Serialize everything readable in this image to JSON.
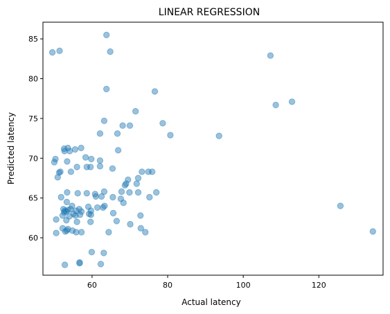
{
  "chart_data": {
    "type": "scatter",
    "title": "LINEAR REGRESSION",
    "xlabel": "Actual latency",
    "ylabel": "Predicted latency",
    "xlim": [
      47,
      137
    ],
    "ylim": [
      55.3,
      87.1
    ],
    "xticks": [
      60,
      80,
      100,
      120
    ],
    "yticks": [
      60,
      65,
      70,
      75,
      80,
      85
    ],
    "grid": false,
    "marker_color": "#1f77b4",
    "marker_alpha": 0.45,
    "points": [
      {
        "x": 49.5,
        "y": 83.3
      },
      {
        "x": 51.4,
        "y": 83.5
      },
      {
        "x": 63.8,
        "y": 85.5
      },
      {
        "x": 64.8,
        "y": 83.4
      },
      {
        "x": 107.2,
        "y": 82.9
      },
      {
        "x": 63.8,
        "y": 78.7
      },
      {
        "x": 76.6,
        "y": 78.4
      },
      {
        "x": 108.6,
        "y": 76.7
      },
      {
        "x": 112.9,
        "y": 77.1
      },
      {
        "x": 71.5,
        "y": 75.9
      },
      {
        "x": 63.2,
        "y": 74.7
      },
      {
        "x": 78.7,
        "y": 74.4
      },
      {
        "x": 68.1,
        "y": 74.1
      },
      {
        "x": 70.0,
        "y": 74.1
      },
      {
        "x": 62.1,
        "y": 73.1
      },
      {
        "x": 66.7,
        "y": 73.1
      },
      {
        "x": 80.7,
        "y": 72.9
      },
      {
        "x": 93.6,
        "y": 72.8
      },
      {
        "x": 57.1,
        "y": 71.3
      },
      {
        "x": 52.6,
        "y": 71.2
      },
      {
        "x": 53.6,
        "y": 71.3
      },
      {
        "x": 54.1,
        "y": 70.9
      },
      {
        "x": 55.5,
        "y": 71.1
      },
      {
        "x": 66.9,
        "y": 71.0
      },
      {
        "x": 52.7,
        "y": 70.9
      },
      {
        "x": 58.3,
        "y": 70.1
      },
      {
        "x": 50.3,
        "y": 69.9
      },
      {
        "x": 59.8,
        "y": 69.9
      },
      {
        "x": 50.0,
        "y": 69.5
      },
      {
        "x": 53.4,
        "y": 69.6
      },
      {
        "x": 62.1,
        "y": 69.7
      },
      {
        "x": 56.0,
        "y": 68.9
      },
      {
        "x": 58.6,
        "y": 68.9
      },
      {
        "x": 59.6,
        "y": 68.9
      },
      {
        "x": 62.1,
        "y": 69.0
      },
      {
        "x": 65.4,
        "y": 68.7
      },
      {
        "x": 51.6,
        "y": 68.3
      },
      {
        "x": 51.3,
        "y": 68.2
      },
      {
        "x": 54.4,
        "y": 68.3
      },
      {
        "x": 73.2,
        "y": 68.3
      },
      {
        "x": 74.9,
        "y": 68.3
      },
      {
        "x": 75.9,
        "y": 68.3
      },
      {
        "x": 50.9,
        "y": 67.6
      },
      {
        "x": 69.5,
        "y": 67.3
      },
      {
        "x": 72.2,
        "y": 67.5
      },
      {
        "x": 69.0,
        "y": 66.8
      },
      {
        "x": 68.7,
        "y": 66.6
      },
      {
        "x": 71.8,
        "y": 66.8
      },
      {
        "x": 53.4,
        "y": 65.7
      },
      {
        "x": 56.2,
        "y": 65.6
      },
      {
        "x": 58.6,
        "y": 65.6
      },
      {
        "x": 60.8,
        "y": 65.5
      },
      {
        "x": 63.2,
        "y": 65.8
      },
      {
        "x": 67.8,
        "y": 65.8
      },
      {
        "x": 69.9,
        "y": 65.7
      },
      {
        "x": 72.2,
        "y": 65.7
      },
      {
        "x": 77.0,
        "y": 65.7
      },
      {
        "x": 51.8,
        "y": 65.1
      },
      {
        "x": 61.0,
        "y": 65.2
      },
      {
        "x": 62.5,
        "y": 65.2
      },
      {
        "x": 65.5,
        "y": 65.1
      },
      {
        "x": 67.6,
        "y": 64.9
      },
      {
        "x": 68.3,
        "y": 64.4
      },
      {
        "x": 75.2,
        "y": 65.1
      },
      {
        "x": 53.3,
        "y": 64.5
      },
      {
        "x": 54.7,
        "y": 64.0
      },
      {
        "x": 59.0,
        "y": 63.9
      },
      {
        "x": 61.4,
        "y": 63.8
      },
      {
        "x": 62.9,
        "y": 63.8
      },
      {
        "x": 63.3,
        "y": 64.0
      },
      {
        "x": 52.4,
        "y": 63.6
      },
      {
        "x": 52.8,
        "y": 63.4
      },
      {
        "x": 53.6,
        "y": 63.5
      },
      {
        "x": 54.3,
        "y": 63.6
      },
      {
        "x": 55.8,
        "y": 63.4
      },
      {
        "x": 56.6,
        "y": 63.6
      },
      {
        "x": 57.2,
        "y": 63.3
      },
      {
        "x": 59.7,
        "y": 63.4
      },
      {
        "x": 52.6,
        "y": 63.2
      },
      {
        "x": 53.2,
        "y": 63.3
      },
      {
        "x": 55.1,
        "y": 63.0
      },
      {
        "x": 56.8,
        "y": 62.9
      },
      {
        "x": 59.2,
        "y": 63.0
      },
      {
        "x": 59.7,
        "y": 62.9
      },
      {
        "x": 65.6,
        "y": 63.1
      },
      {
        "x": 72.8,
        "y": 62.8
      },
      {
        "x": 52.2,
        "y": 62.8
      },
      {
        "x": 54.0,
        "y": 62.7
      },
      {
        "x": 55.6,
        "y": 62.8
      },
      {
        "x": 50.5,
        "y": 62.3
      },
      {
        "x": 53.2,
        "y": 62.2
      },
      {
        "x": 56.0,
        "y": 62.0
      },
      {
        "x": 59.6,
        "y": 62.0
      },
      {
        "x": 66.5,
        "y": 62.1
      },
      {
        "x": 70.1,
        "y": 61.7
      },
      {
        "x": 52.2,
        "y": 61.2
      },
      {
        "x": 53.6,
        "y": 61.1
      },
      {
        "x": 53.3,
        "y": 60.9
      },
      {
        "x": 50.5,
        "y": 60.6
      },
      {
        "x": 52.9,
        "y": 60.8
      },
      {
        "x": 54.8,
        "y": 60.9
      },
      {
        "x": 55.8,
        "y": 60.7
      },
      {
        "x": 57.2,
        "y": 60.7
      },
      {
        "x": 64.4,
        "y": 60.7
      },
      {
        "x": 72.9,
        "y": 61.2
      },
      {
        "x": 74.1,
        "y": 60.7
      },
      {
        "x": 125.7,
        "y": 64.0
      },
      {
        "x": 134.3,
        "y": 60.8
      },
      {
        "x": 59.9,
        "y": 58.2
      },
      {
        "x": 63.1,
        "y": 58.1
      },
      {
        "x": 56.7,
        "y": 56.9
      },
      {
        "x": 56.7,
        "y": 56.8
      },
      {
        "x": 52.8,
        "y": 56.6
      },
      {
        "x": 62.3,
        "y": 56.7
      }
    ]
  }
}
